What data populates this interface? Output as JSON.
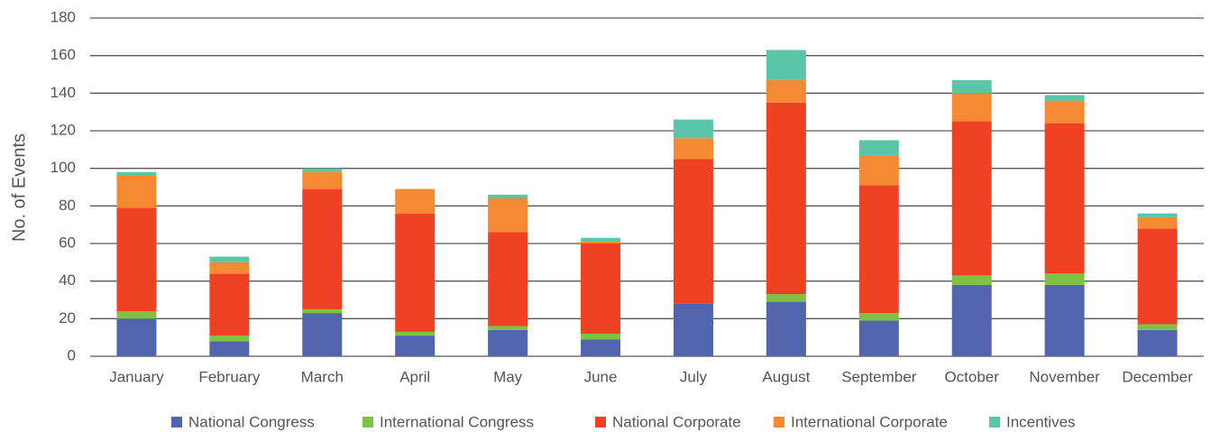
{
  "chart_data": {
    "type": "stacked_bar",
    "y_label": "No. of Events",
    "categories": [
      "January",
      "February",
      "March",
      "April",
      "May",
      "June",
      "July",
      "August",
      "September",
      "October",
      "November",
      "December"
    ],
    "series": [
      {
        "name": "National Congress",
        "color": "#5264ae",
        "values": [
          20,
          8,
          23,
          11,
          14,
          9,
          28,
          29,
          19,
          38,
          38,
          14
        ]
      },
      {
        "name": "International Congress",
        "color": "#7dc242",
        "values": [
          4,
          3,
          2,
          2,
          2,
          3,
          0,
          4,
          4,
          5,
          6,
          3
        ]
      },
      {
        "name": "National Corporate",
        "color": "#ef4123",
        "values": [
          55,
          33,
          64,
          63,
          50,
          48,
          77,
          102,
          68,
          82,
          80,
          51
        ]
      },
      {
        "name": "International Corporate",
        "color": "#f58a32",
        "values": [
          17,
          6,
          9,
          13,
          18,
          1,
          11,
          12,
          16,
          15,
          12,
          6
        ]
      },
      {
        "name": "Incentives",
        "color": "#5bc5a7",
        "values": [
          2,
          3,
          2,
          0,
          2,
          2,
          10,
          16,
          8,
          7,
          3,
          2
        ]
      }
    ],
    "ylim": [
      0,
      180
    ],
    "yticks": [
      0,
      20,
      40,
      60,
      80,
      100,
      120,
      140,
      160,
      180
    ],
    "grid": true,
    "legend": "bottom"
  }
}
